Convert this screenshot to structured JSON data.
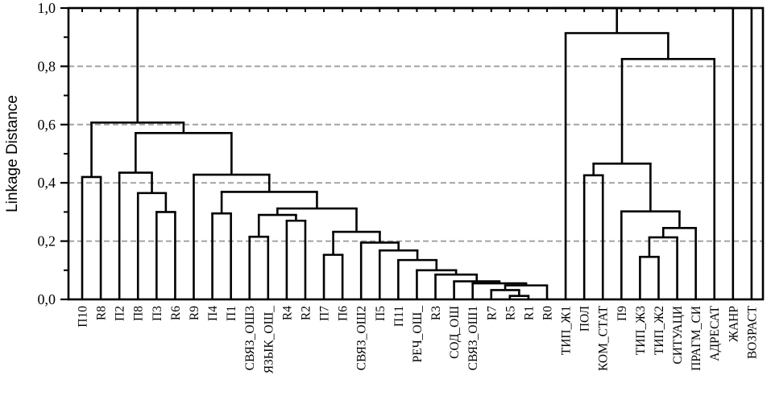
{
  "figure": {
    "ylabel": "Linkage Distance"
  },
  "chart_data": {
    "type": "dendrogram",
    "title": "",
    "xlabel": "",
    "ylabel": "Linkage Distance",
    "ylim": [
      0.0,
      1.0
    ],
    "y_major_tick_labels": [
      "0,0",
      "0,2",
      "0,4",
      "0,6",
      "0,8",
      "1,0"
    ],
    "y_major_tick_values": [
      0.0,
      0.2,
      0.4,
      0.6,
      0.8,
      1.0
    ],
    "y_minor_tick_values": [
      0.1,
      0.3,
      0.5,
      0.7,
      0.9
    ],
    "grid": {
      "horizontal_dashed_at": [
        0.2,
        0.4,
        0.6,
        0.8
      ],
      "style": "dashed",
      "color": "#a3a3a3"
    },
    "legend": "none",
    "leaves": [
      "П10",
      "R8",
      "П2",
      "П8",
      "П3",
      "R6",
      "R9",
      "П4",
      "П1",
      "СВЯЗ_ОШ3",
      "ЯЗЫК_ОШ_",
      "R4",
      "R2",
      "П7",
      "П6",
      "СВЯЗ_ОШ2",
      "П5",
      "П11",
      "РЕЧ_ОШ_",
      "R3",
      "СОД_ОШ",
      "СВЯЗ_ОШ1",
      "R7",
      "R5",
      "R1",
      "R0",
      "ТИП_Ж1",
      "ПОЛ",
      "КОМ_СТАТ",
      "П9",
      "ТИП_Ж3",
      "ТИП_Ж2",
      "СИТУАЦИ",
      "ПРАГМ_СИ",
      "АДРЕСАТ",
      "ЖАНР",
      "ВОЗРАСТ"
    ],
    "merges_note": "each merge = [childA, childB, linkage_distance]; '@k' references merge k (0-based), other strings reference leaves",
    "merges": [
      [
        "П10",
        "R8",
        0.42
      ],
      [
        "П3",
        "R6",
        0.3
      ],
      [
        "П8",
        "@1",
        0.365
      ],
      [
        "П2",
        "@2",
        0.435
      ],
      [
        "П4",
        "П1",
        0.295
      ],
      [
        "СВЯЗ_ОШ3",
        "ЯЗЫК_ОШ_",
        0.215
      ],
      [
        "R4",
        "R2",
        0.27
      ],
      [
        "@5",
        "@6",
        0.29
      ],
      [
        "П7",
        "П6",
        0.153
      ],
      [
        "R5",
        "R1",
        0.012
      ],
      [
        "R7",
        "@9",
        0.032
      ],
      [
        "@10",
        "R0",
        0.048
      ],
      [
        "СВЯЗ_ОШ1",
        "@11",
        0.055
      ],
      [
        "СОД_ОШ",
        "@12",
        0.062
      ],
      [
        "R3",
        "@13",
        0.085
      ],
      [
        "РЕЧ_ОШ_",
        "@14",
        0.1
      ],
      [
        "П11",
        "@15",
        0.135
      ],
      [
        "П5",
        "@16",
        0.168
      ],
      [
        "СВЯЗ_ОШ2",
        "@17",
        0.195
      ],
      [
        "@8",
        "@18",
        0.232
      ],
      [
        "@7",
        "@19",
        0.312
      ],
      [
        "@4",
        "@20",
        0.369
      ],
      [
        "R9",
        "@21",
        0.428
      ],
      [
        "@3",
        "@22",
        0.571
      ],
      [
        "@0",
        "@23",
        0.607
      ],
      [
        "ПОЛ",
        "КОМ_СТАТ",
        0.426
      ],
      [
        "ТИП_Ж3",
        "ТИП_Ж2",
        0.146
      ],
      [
        "@26",
        "СИТУАЦИ",
        0.213
      ],
      [
        "@27",
        "ПРАГМ_СИ",
        0.245
      ],
      [
        "П9",
        "@28",
        0.302
      ],
      [
        "@25",
        "@29",
        0.466
      ],
      [
        "@30",
        "АДРЕСАТ",
        0.825
      ],
      [
        "ТИП_Ж1",
        "@31",
        0.914
      ],
      [
        "@24",
        "@32",
        1.0
      ],
      [
        "@33",
        "ЖАНР",
        1.0
      ],
      [
        "@34",
        "ВОЗРАСТ",
        1.0
      ]
    ],
    "colors": {
      "line": "#000000",
      "grid": "#a3a3a3",
      "background": "#ffffff",
      "text": "#000000"
    }
  }
}
